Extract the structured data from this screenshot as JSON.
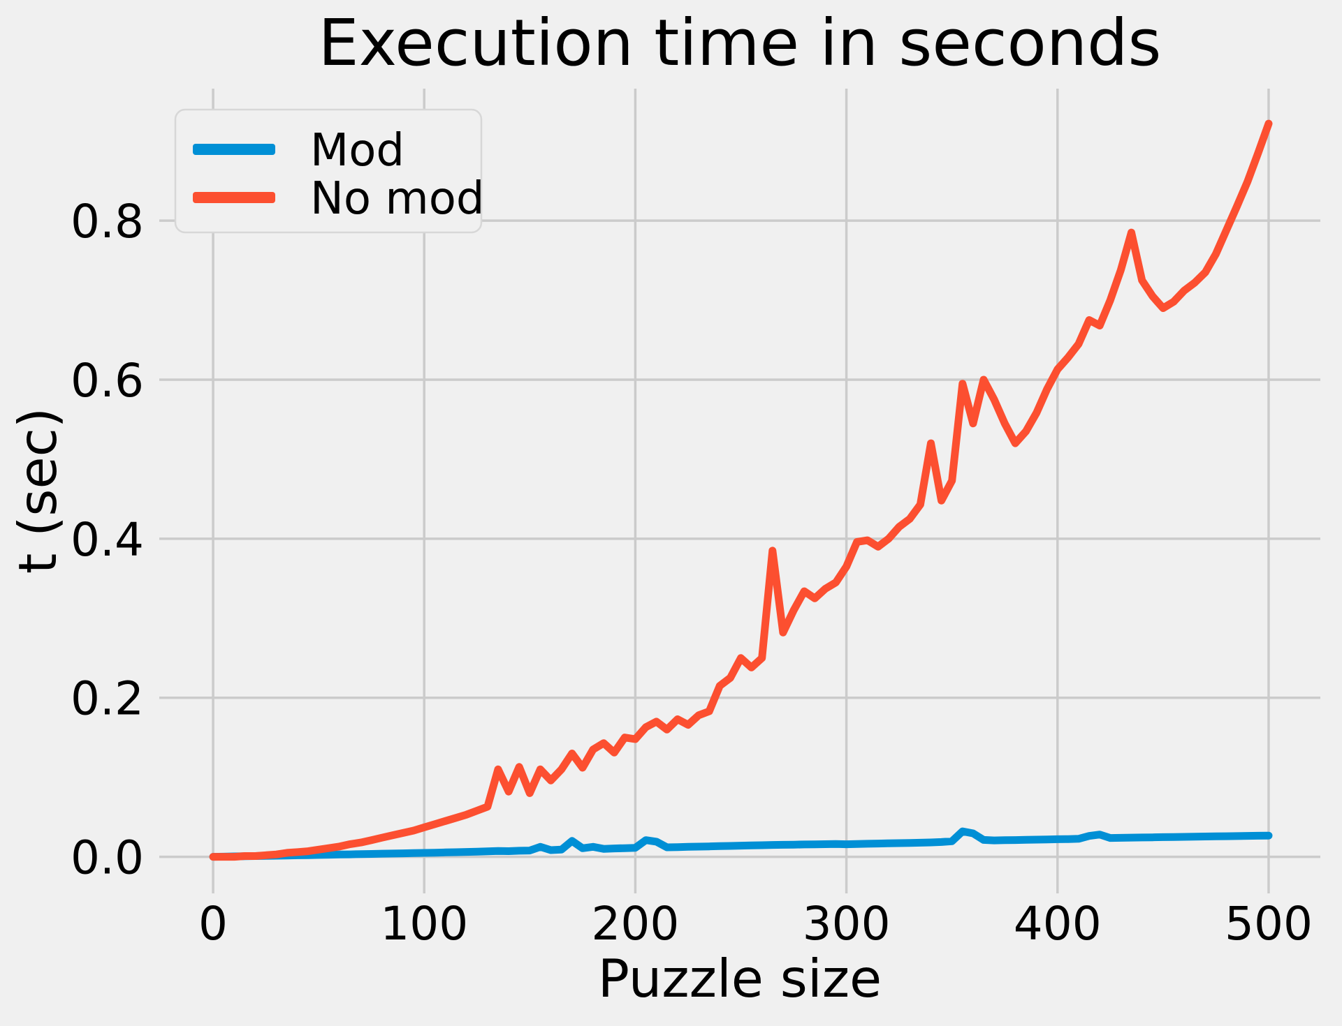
{
  "chart_data": {
    "type": "line",
    "title": "Execution time in seconds",
    "xlabel": "Puzzle size",
    "ylabel": "t (sec)",
    "grid": true,
    "style": {
      "background": "#f0f0f0",
      "grid_color": "#cbcbcb",
      "text_color": "#000000",
      "legend_border_color": "#d7d7d7",
      "line_width": 11
    },
    "xlim": [
      -25.5,
      524.5
    ],
    "ylim": [
      -0.046,
      0.966
    ],
    "x_ticks": {
      "values": [
        0,
        100,
        200,
        300,
        400,
        500
      ],
      "labels": [
        "0",
        "100",
        "200",
        "300",
        "400",
        "500"
      ]
    },
    "y_ticks": {
      "values": [
        0.0,
        0.2,
        0.4,
        0.6,
        0.8
      ],
      "labels": [
        "0.0",
        "0.2",
        "0.4",
        "0.6",
        "0.8"
      ]
    },
    "legend": {
      "position": "upper left",
      "entries": [
        {
          "name": "Mod",
          "color": "#008fd5"
        },
        {
          "name": "No mod",
          "color": "#fc4f30"
        }
      ]
    },
    "x": [
      0,
      5,
      10,
      15,
      20,
      25,
      30,
      35,
      40,
      45,
      50,
      55,
      60,
      65,
      70,
      75,
      80,
      85,
      90,
      95,
      100,
      105,
      110,
      115,
      120,
      125,
      130,
      135,
      140,
      145,
      150,
      155,
      160,
      165,
      170,
      175,
      180,
      185,
      190,
      195,
      200,
      205,
      210,
      215,
      220,
      225,
      230,
      235,
      240,
      245,
      250,
      255,
      260,
      265,
      270,
      275,
      280,
      285,
      290,
      295,
      300,
      305,
      310,
      315,
      320,
      325,
      330,
      335,
      340,
      345,
      350,
      355,
      360,
      365,
      370,
      375,
      380,
      385,
      390,
      395,
      400,
      405,
      410,
      415,
      420,
      425,
      430,
      435,
      440,
      445,
      450,
      455,
      460,
      465,
      470,
      475,
      480,
      485,
      490,
      495,
      500
    ],
    "series": [
      {
        "name": "Mod",
        "color": "#008fd5",
        "values": [
          0.0,
          0.0002,
          0.0005,
          0.0007,
          0.001,
          0.0012,
          0.0014,
          0.0016,
          0.0019,
          0.0021,
          0.0024,
          0.0026,
          0.0029,
          0.0031,
          0.0034,
          0.0036,
          0.0039,
          0.0041,
          0.0044,
          0.0046,
          0.0049,
          0.0052,
          0.0055,
          0.0058,
          0.0061,
          0.0064,
          0.0068,
          0.0074,
          0.0071,
          0.0076,
          0.0079,
          0.0125,
          0.0084,
          0.009,
          0.02,
          0.0108,
          0.0125,
          0.01,
          0.0105,
          0.0109,
          0.0113,
          0.021,
          0.019,
          0.0119,
          0.0122,
          0.0125,
          0.0128,
          0.0131,
          0.0134,
          0.0137,
          0.014,
          0.0143,
          0.0146,
          0.0149,
          0.0151,
          0.0153,
          0.0155,
          0.0157,
          0.0159,
          0.0161,
          0.0158,
          0.0161,
          0.0164,
          0.0167,
          0.017,
          0.0172,
          0.0174,
          0.0177,
          0.0181,
          0.0186,
          0.0196,
          0.032,
          0.0295,
          0.0212,
          0.0206,
          0.0209,
          0.0211,
          0.0213,
          0.0216,
          0.0218,
          0.0221,
          0.0223,
          0.0226,
          0.0262,
          0.028,
          0.0237,
          0.0239,
          0.0241,
          0.0243,
          0.0245,
          0.0247,
          0.0249,
          0.0251,
          0.0253,
          0.0255,
          0.0257,
          0.0259,
          0.0261,
          0.0263,
          0.0265,
          0.0267
        ]
      },
      {
        "name": "No mod",
        "color": "#fc4f30",
        "values": [
          0.0,
          0.0,
          0.0,
          0.001,
          0.001,
          0.002,
          0.003,
          0.005,
          0.006,
          0.007,
          0.009,
          0.011,
          0.013,
          0.016,
          0.018,
          0.021,
          0.024,
          0.027,
          0.03,
          0.033,
          0.037,
          0.041,
          0.045,
          0.049,
          0.053,
          0.058,
          0.063,
          0.11,
          0.082,
          0.113,
          0.08,
          0.11,
          0.096,
          0.11,
          0.13,
          0.112,
          0.135,
          0.143,
          0.131,
          0.15,
          0.148,
          0.163,
          0.17,
          0.16,
          0.173,
          0.166,
          0.178,
          0.183,
          0.215,
          0.225,
          0.25,
          0.238,
          0.25,
          0.385,
          0.282,
          0.31,
          0.334,
          0.325,
          0.337,
          0.345,
          0.365,
          0.396,
          0.398,
          0.39,
          0.4,
          0.415,
          0.425,
          0.443,
          0.52,
          0.448,
          0.473,
          0.595,
          0.545,
          0.6,
          0.575,
          0.545,
          0.52,
          0.535,
          0.558,
          0.588,
          0.613,
          0.628,
          0.645,
          0.675,
          0.668,
          0.7,
          0.738,
          0.785,
          0.725,
          0.705,
          0.69,
          0.698,
          0.712,
          0.722,
          0.735,
          0.758,
          0.788,
          0.818,
          0.849,
          0.885,
          0.922
        ]
      }
    ]
  }
}
